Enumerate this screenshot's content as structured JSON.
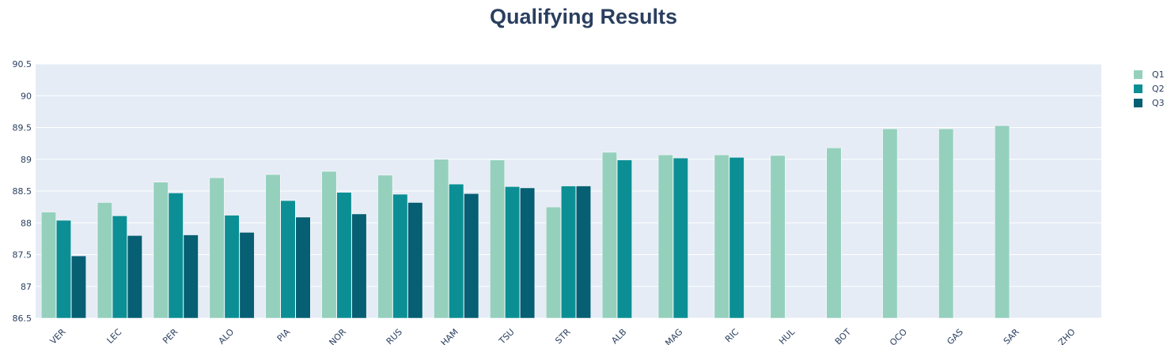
{
  "chart_data": {
    "type": "bar",
    "title": "Qualifying Results",
    "xlabel": "",
    "ylabel": "",
    "ylim": [
      86.5,
      90.5
    ],
    "yticks": [
      "86.5",
      "87",
      "87.5",
      "88",
      "88.5",
      "89",
      "89.5",
      "90",
      "90.5"
    ],
    "categories": [
      "VER",
      "LEC",
      "PER",
      "ALO",
      "PIA",
      "NOR",
      "RUS",
      "HAM",
      "TSU",
      "STR",
      "ALB",
      "MAG",
      "RIC",
      "HUL",
      "BOT",
      "OCO",
      "GAS",
      "SAR",
      "ZHO"
    ],
    "series": [
      {
        "name": "Q1",
        "color": "#95d0bd",
        "values": [
          88.17,
          88.32,
          88.64,
          88.71,
          88.76,
          88.81,
          88.75,
          89.0,
          88.99,
          88.25,
          89.11,
          89.07,
          89.07,
          89.06,
          89.18,
          89.48,
          89.48,
          89.53,
          null
        ]
      },
      {
        "name": "Q2",
        "color": "#0c8f94",
        "values": [
          88.04,
          88.11,
          88.47,
          88.12,
          88.35,
          88.48,
          88.45,
          88.61,
          88.57,
          88.58,
          88.99,
          89.02,
          89.03,
          null,
          null,
          null,
          null,
          null,
          null
        ]
      },
      {
        "name": "Q3",
        "color": "#065f73",
        "values": [
          87.48,
          87.8,
          87.81,
          87.85,
          88.09,
          88.14,
          88.32,
          88.46,
          88.55,
          88.58,
          null,
          null,
          null,
          null,
          null,
          null,
          null,
          null,
          null
        ]
      }
    ],
    "grid": true,
    "legend": "top-right",
    "plot_bg": "#e5ecf6"
  }
}
